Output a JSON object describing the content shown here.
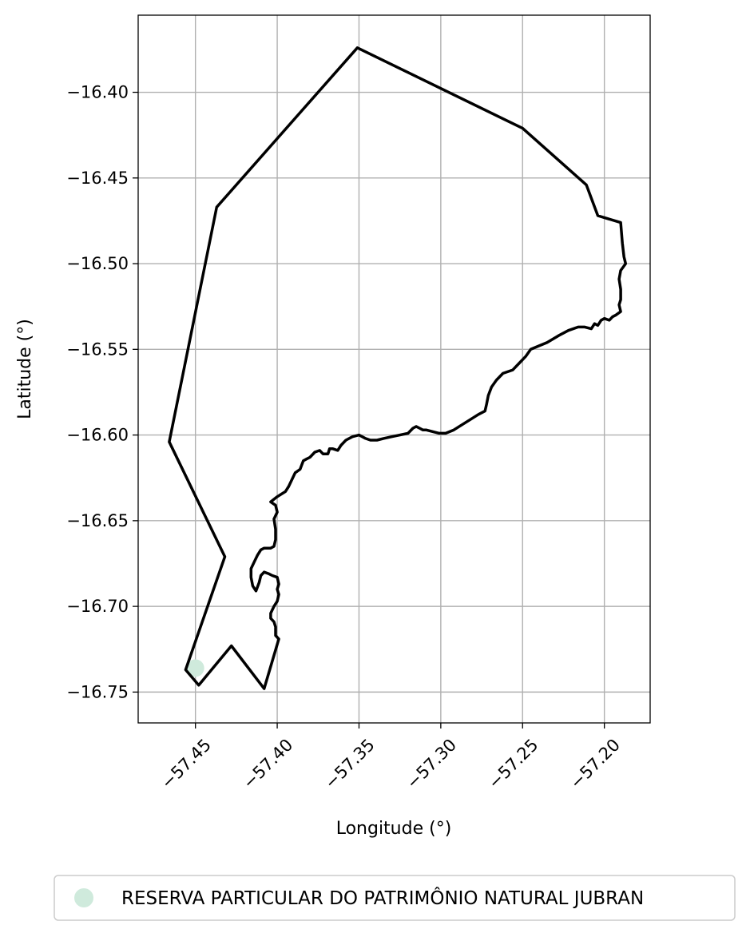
{
  "chart_data": {
    "type": "map",
    "xlabel": "Longitude (°)",
    "ylabel": "Latitude (°)",
    "xlim": [
      -57.485,
      -57.172
    ],
    "ylim": [
      -16.768,
      -16.355
    ],
    "grid": true,
    "x_ticks": [
      {
        "value": -57.45,
        "label": "−57.45"
      },
      {
        "value": -57.4,
        "label": "−57.40"
      },
      {
        "value": -57.35,
        "label": "−57.35"
      },
      {
        "value": -57.3,
        "label": "−57.30"
      },
      {
        "value": -57.25,
        "label": "−57.25"
      },
      {
        "value": -57.2,
        "label": "−57.20"
      }
    ],
    "y_ticks": [
      {
        "value": -16.4,
        "label": "−16.40"
      },
      {
        "value": -16.45,
        "label": "−16.45"
      },
      {
        "value": -16.5,
        "label": "−16.50"
      },
      {
        "value": -16.55,
        "label": "−16.55"
      },
      {
        "value": -16.6,
        "label": "−16.60"
      },
      {
        "value": -16.65,
        "label": "−16.65"
      },
      {
        "value": -16.7,
        "label": "−16.70"
      },
      {
        "value": -16.75,
        "label": "−16.75"
      }
    ],
    "boundary": {
      "color": "#000000",
      "points": [
        [
          -57.351,
          -16.374
        ],
        [
          -57.25,
          -16.421
        ],
        [
          -57.211,
          -16.454
        ],
        [
          -57.204,
          -16.472
        ],
        [
          -57.19,
          -16.476
        ],
        [
          -57.189,
          -16.488
        ],
        [
          -57.188,
          -16.496
        ],
        [
          -57.187,
          -16.5
        ],
        [
          -57.19,
          -16.504
        ],
        [
          -57.191,
          -16.509
        ],
        [
          -57.19,
          -16.515
        ],
        [
          -57.19,
          -16.521
        ],
        [
          -57.191,
          -16.524
        ],
        [
          -57.19,
          -16.528
        ],
        [
          -57.193,
          -16.53
        ],
        [
          -57.195,
          -16.531
        ],
        [
          -57.197,
          -16.533
        ],
        [
          -57.2,
          -16.532
        ],
        [
          -57.202,
          -16.533
        ],
        [
          -57.204,
          -16.536
        ],
        [
          -57.206,
          -16.535
        ],
        [
          -57.208,
          -16.538
        ],
        [
          -57.212,
          -16.537
        ],
        [
          -57.216,
          -16.537
        ],
        [
          -57.222,
          -16.539
        ],
        [
          -57.228,
          -16.542
        ],
        [
          -57.235,
          -16.546
        ],
        [
          -57.24,
          -16.548
        ],
        [
          -57.245,
          -16.55
        ],
        [
          -57.248,
          -16.554
        ],
        [
          -57.252,
          -16.558
        ],
        [
          -57.256,
          -16.562
        ],
        [
          -57.262,
          -16.564
        ],
        [
          -57.266,
          -16.568
        ],
        [
          -57.269,
          -16.572
        ],
        [
          -57.271,
          -16.577
        ],
        [
          -57.272,
          -16.582
        ],
        [
          -57.273,
          -16.586
        ],
        [
          -57.277,
          -16.588
        ],
        [
          -57.282,
          -16.591
        ],
        [
          -57.287,
          -16.594
        ],
        [
          -57.292,
          -16.597
        ],
        [
          -57.297,
          -16.599
        ],
        [
          -57.301,
          -16.599
        ],
        [
          -57.305,
          -16.598
        ],
        [
          -57.309,
          -16.597
        ],
        [
          -57.311,
          -16.597
        ],
        [
          -57.313,
          -16.596
        ],
        [
          -57.315,
          -16.595
        ],
        [
          -57.317,
          -16.596
        ],
        [
          -57.32,
          -16.599
        ],
        [
          -57.325,
          -16.6
        ],
        [
          -57.33,
          -16.601
        ],
        [
          -57.335,
          -16.602
        ],
        [
          -57.339,
          -16.603
        ],
        [
          -57.343,
          -16.603
        ],
        [
          -57.346,
          -16.602
        ],
        [
          -57.35,
          -16.6
        ],
        [
          -57.354,
          -16.601
        ],
        [
          -57.358,
          -16.603
        ],
        [
          -57.361,
          -16.606
        ],
        [
          -57.363,
          -16.609
        ],
        [
          -57.366,
          -16.608
        ],
        [
          -57.368,
          -16.608
        ],
        [
          -57.369,
          -16.611
        ],
        [
          -57.372,
          -16.611
        ],
        [
          -57.374,
          -16.609
        ],
        [
          -57.377,
          -16.61
        ],
        [
          -57.38,
          -16.613
        ],
        [
          -57.382,
          -16.614
        ],
        [
          -57.384,
          -16.615
        ],
        [
          -57.386,
          -16.62
        ],
        [
          -57.389,
          -16.622
        ],
        [
          -57.391,
          -16.626
        ],
        [
          -57.393,
          -16.63
        ],
        [
          -57.395,
          -16.633
        ],
        [
          -57.4,
          -16.636
        ],
        [
          -57.404,
          -16.639
        ],
        [
          -57.401,
          -16.641
        ],
        [
          -57.4,
          -16.645
        ],
        [
          -57.402,
          -16.649
        ],
        [
          -57.401,
          -16.655
        ],
        [
          -57.401,
          -16.661
        ],
        [
          -57.402,
          -16.665
        ],
        [
          -57.404,
          -16.666
        ],
        [
          -57.408,
          -16.666
        ],
        [
          -57.41,
          -16.667
        ],
        [
          -57.412,
          -16.67
        ],
        [
          -57.414,
          -16.674
        ],
        [
          -57.416,
          -16.678
        ],
        [
          -57.416,
          -16.683
        ],
        [
          -57.415,
          -16.688
        ],
        [
          -57.413,
          -16.691
        ],
        [
          -57.411,
          -16.686
        ],
        [
          -57.41,
          -16.682
        ],
        [
          -57.408,
          -16.68
        ],
        [
          -57.405,
          -16.681
        ],
        [
          -57.403,
          -16.682
        ],
        [
          -57.4,
          -16.683
        ],
        [
          -57.399,
          -16.687
        ],
        [
          -57.4,
          -16.69
        ],
        [
          -57.399,
          -16.693
        ],
        [
          -57.4,
          -16.697
        ],
        [
          -57.402,
          -16.7
        ],
        [
          -57.404,
          -16.704
        ],
        [
          -57.404,
          -16.707
        ],
        [
          -57.402,
          -16.709
        ],
        [
          -57.401,
          -16.712
        ],
        [
          -57.401,
          -16.717
        ],
        [
          -57.399,
          -16.719
        ],
        [
          -57.408,
          -16.748
        ],
        [
          -57.428,
          -16.723
        ],
        [
          -57.448,
          -16.746
        ],
        [
          -57.456,
          -16.737
        ],
        [
          -57.432,
          -16.671
        ],
        [
          -57.466,
          -16.604
        ],
        [
          -57.437,
          -16.467
        ],
        [
          -57.351,
          -16.374
        ]
      ]
    },
    "points": [
      {
        "name": "RESERVA PARTICULAR DO PATRIMÔNIO NATURAL JUBRAN",
        "lon": -57.45,
        "lat": -16.736,
        "color": "#cfeadc"
      }
    ],
    "legend": {
      "placement": "below",
      "entries": [
        {
          "label": "RESERVA PARTICULAR DO PATRIMÔNIO NATURAL JUBRAN",
          "color": "#cfeadc",
          "marker": "circle"
        }
      ]
    }
  }
}
